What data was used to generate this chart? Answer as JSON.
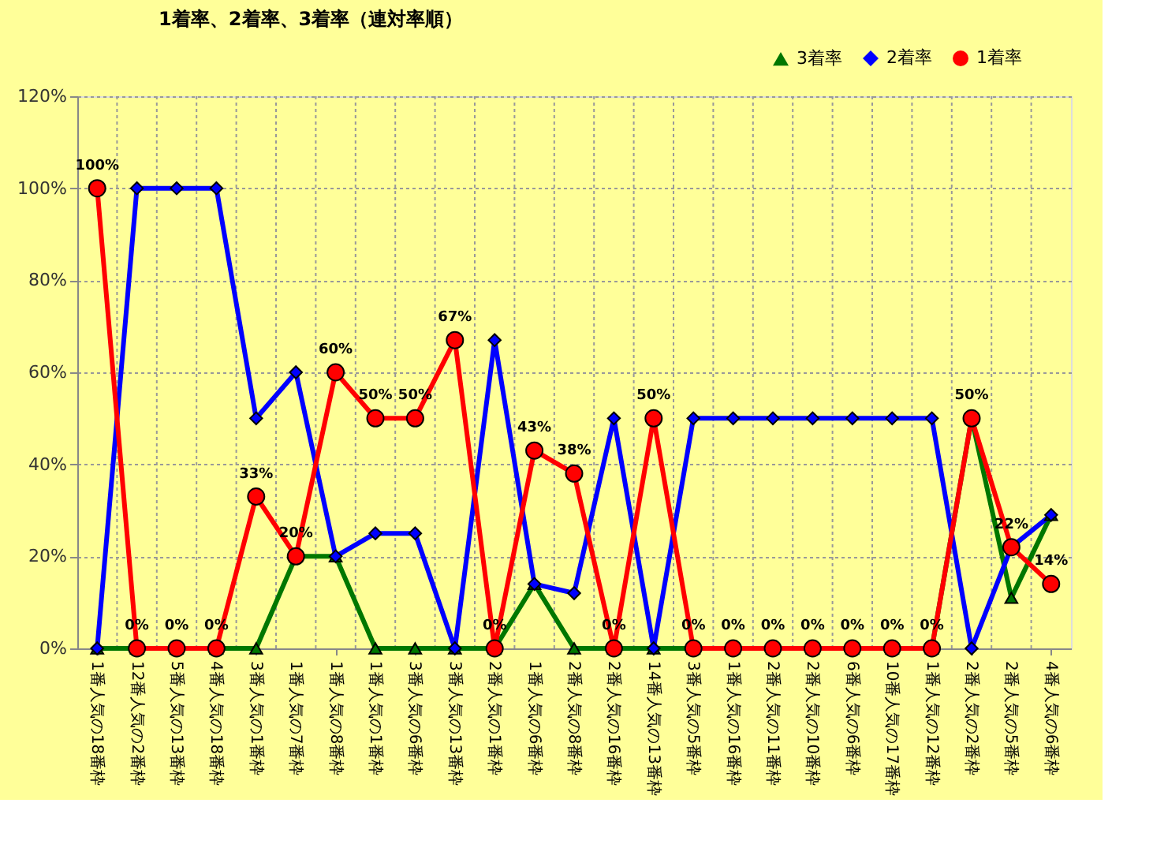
{
  "chart_data": {
    "type": "line",
    "title": "1着率、2着率、3着率（連対率順）",
    "categories": [
      "1番人気の18番枠",
      "12番人気の2番枠",
      "5番人気の13番枠",
      "4番人気の18番枠",
      "3番人気の1番枠",
      "1番人気の7番枠",
      "1番人気の8番枠",
      "1番人気の1番枠",
      "3番人気の6番枠",
      "3番人気の13番枠",
      "2番人気の1番枠",
      "1番人気の6番枠",
      "2番人気の8番枠",
      "2番人気の16番枠",
      "14番人気の13番枠",
      "3番人気の5番枠",
      "1番人気の16番枠",
      "2番人気の11番枠",
      "2番人気の10番枠",
      "6番人気の6番枠",
      "10番人気の17番枠",
      "1番人気の12番枠",
      "2番人気の2番枠",
      "2番人気の5番枠",
      "4番人気の6番枠"
    ],
    "series": [
      {
        "name": "3着率",
        "color": "#007700",
        "marker": "triangle",
        "values": [
          0,
          0,
          0,
          0,
          0,
          20,
          20,
          0,
          0,
          0,
          0,
          14,
          0,
          0,
          0,
          0,
          0,
          0,
          0,
          0,
          0,
          0,
          50,
          11,
          29
        ]
      },
      {
        "name": "2着率",
        "color": "#0000ff",
        "marker": "diamond",
        "values": [
          0,
          100,
          100,
          100,
          50,
          60,
          20,
          25,
          25,
          0,
          67,
          14,
          12,
          50,
          0,
          50,
          50,
          50,
          50,
          50,
          50,
          50,
          0,
          22,
          29
        ]
      },
      {
        "name": "1着率",
        "color": "#ff0000",
        "marker": "circle",
        "values": [
          100,
          0,
          0,
          0,
          33,
          20,
          60,
          50,
          50,
          67,
          0,
          43,
          38,
          0,
          50,
          0,
          0,
          0,
          0,
          0,
          0,
          0,
          50,
          22,
          14
        ],
        "value_labels": [
          "100%",
          "0%",
          "0%",
          "0%",
          "33%",
          "20%",
          "60%",
          "50%",
          "50%",
          "67%",
          "0%",
          "43%",
          "38%",
          "0%",
          "50%",
          "0%",
          "0%",
          "0%",
          "0%",
          "0%",
          "0%",
          "0%",
          "50%",
          "22%",
          "14%"
        ]
      }
    ],
    "ylim": [
      0,
      120
    ],
    "yticks": [
      {
        "value": 0,
        "label": "0%"
      },
      {
        "value": 20,
        "label": "20%"
      },
      {
        "value": 40,
        "label": "40%"
      },
      {
        "value": 60,
        "label": "60%"
      },
      {
        "value": 80,
        "label": "80%"
      },
      {
        "value": 100,
        "label": "100%"
      },
      {
        "value": 120,
        "label": "120%"
      }
    ],
    "grid": true,
    "legend": "top right",
    "line_style": "solid"
  }
}
